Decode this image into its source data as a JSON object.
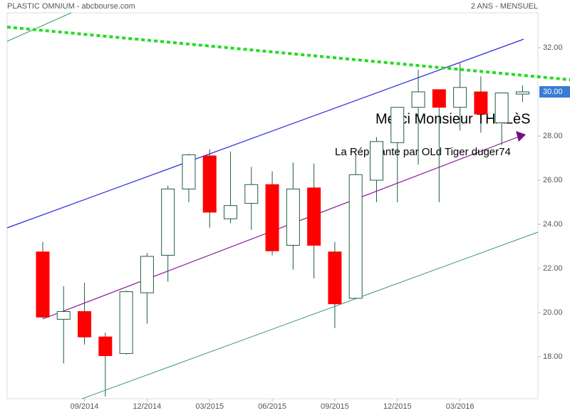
{
  "chart_data": {
    "type": "candlestick",
    "title": "PLASTIC OMNIUM - abcbourse.com",
    "subtitle": "2 ANS - MENSUEL",
    "annotations": [
      "Merci Monsieur THALèS",
      "La Réplicante par OLd Tiger duger74"
    ],
    "categories": [
      null,
      null,
      "09/2014",
      null,
      null,
      "12/2014",
      null,
      null,
      "03/2015",
      null,
      null,
      "06/2015",
      null,
      null,
      "09/2015",
      null,
      null,
      "12/2015",
      null,
      null,
      "03/2016",
      null,
      null,
      null
    ],
    "open": [
      22.75,
      19.7,
      20.05,
      18.9,
      18.15,
      20.9,
      22.6,
      25.6,
      27.1,
      24.25,
      24.95,
      25.8,
      23.05,
      25.65,
      22.75,
      20.65,
      26.0,
      27.7,
      29.3,
      30.1,
      29.3,
      30.0,
      28.6,
      29.9
    ],
    "high": [
      23.2,
      21.2,
      21.35,
      19.1,
      21.0,
      22.7,
      25.75,
      27.2,
      27.4,
      27.3,
      26.6,
      26.4,
      26.8,
      26.75,
      23.2,
      27.2,
      27.95,
      29.3,
      31.0,
      30.1,
      31.3,
      30.7,
      29.95,
      30.3
    ],
    "low": [
      19.75,
      17.7,
      18.55,
      16.2,
      18.1,
      19.5,
      21.4,
      25.0,
      23.85,
      24.05,
      23.75,
      22.6,
      21.95,
      21.55,
      19.3,
      20.65,
      25.0,
      25.0,
      26.7,
      25.0,
      28.25,
      28.15,
      27.6,
      29.55
    ],
    "close": [
      19.8,
      20.05,
      18.9,
      18.05,
      20.95,
      22.55,
      25.6,
      27.15,
      24.55,
      24.85,
      25.8,
      22.8,
      25.6,
      23.05,
      20.4,
      26.25,
      27.75,
      29.3,
      30.0,
      29.3,
      30.2,
      29.0,
      29.95,
      30.0
    ],
    "up_color": "#ffffff",
    "down_color": "#ff0000",
    "edge_color": "#1f5f3f",
    "ylim": [
      16.1,
      33.58
    ],
    "yticks": [
      {
        "value": 18,
        "label": "18.00"
      },
      {
        "value": 20,
        "label": "20.00"
      },
      {
        "value": 22,
        "label": "22.00"
      },
      {
        "value": 24,
        "label": "24.00"
      },
      {
        "value": 26,
        "label": "26.00"
      },
      {
        "value": 28,
        "label": "28.00"
      },
      {
        "value": 32,
        "label": "32.00"
      }
    ],
    "last_price": {
      "value": 30,
      "label": "30.00"
    },
    "last_price_color": "#3a7bd5"
  }
}
